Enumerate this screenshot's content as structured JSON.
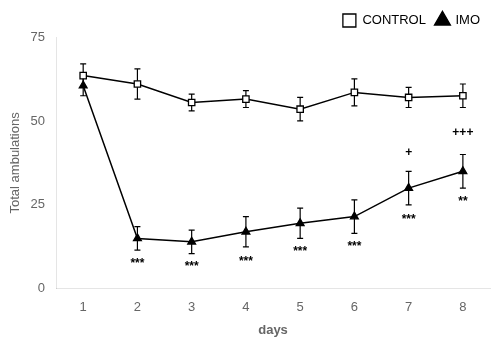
{
  "chart_data": {
    "type": "line",
    "x": [
      1,
      2,
      3,
      4,
      5,
      6,
      7,
      8
    ],
    "xlim": [
      0.5,
      8.5
    ],
    "xticks": [
      1,
      2,
      3,
      4,
      5,
      6,
      7,
      8
    ],
    "ylim": [
      0,
      75
    ],
    "yticks": [
      0,
      25,
      50,
      75
    ],
    "xlabel": "days",
    "ylabel": "Total ambulations",
    "grid": false,
    "legend": "upper right",
    "series": [
      {
        "name": "CONTROL",
        "color": "#000000",
        "marker": "square",
        "values": [
          63.5,
          61.0,
          55.5,
          56.5,
          53.5,
          58.5,
          57.0,
          57.5
        ],
        "errors": [
          3.5,
          4.5,
          2.5,
          2.5,
          3.5,
          4.0,
          3.0,
          3.5
        ]
      },
      {
        "name": "IMO",
        "color": "#000000",
        "marker": "triangle",
        "values": [
          60.5,
          15.0,
          14.0,
          17.0,
          19.5,
          21.5,
          30.0,
          35.0
        ],
        "errors": [
          3.0,
          3.5,
          3.5,
          4.5,
          4.5,
          5.0,
          5.0,
          5.0
        ]
      }
    ],
    "annotations": [
      {
        "x": 2,
        "y": 7.5,
        "text": "***"
      },
      {
        "x": 3,
        "y": 6.5,
        "text": "***"
      },
      {
        "x": 4,
        "y": 8.0,
        "text": "***"
      },
      {
        "x": 5,
        "y": 11.0,
        "text": "***"
      },
      {
        "x": 6,
        "y": 12.5,
        "text": "***"
      },
      {
        "x": 7,
        "y": 20.5,
        "text": "***"
      },
      {
        "x": 7,
        "y": 40.5,
        "text": "+"
      },
      {
        "x": 8,
        "y": 26.0,
        "text": "**"
      },
      {
        "x": 8,
        "y": 46.5,
        "text": "+++"
      }
    ]
  }
}
